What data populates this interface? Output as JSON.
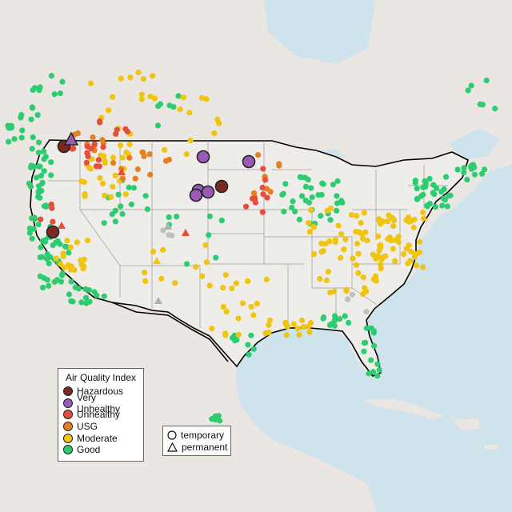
{
  "legend": {
    "title": "Air Quality Index",
    "categories": [
      {
        "key": "hazardous",
        "label": "Hazardous",
        "color": "#7b2a22"
      },
      {
        "key": "very_unhealthy",
        "label": "Very Unhealthy",
        "color": "#9b59b6"
      },
      {
        "key": "unhealthy",
        "label": "Unhealthy",
        "color": "#e74c3c"
      },
      {
        "key": "usg",
        "label": "USG",
        "color": "#e67e22"
      },
      {
        "key": "moderate",
        "label": "Moderate",
        "color": "#f1c40f"
      },
      {
        "key": "good",
        "label": "Good",
        "color": "#2ecc71"
      }
    ]
  },
  "shape_legend": {
    "temporary": "temporary",
    "permanent": "permanent"
  },
  "colors": {
    "ocean": "#cfe3ec",
    "land": "#eae6e1",
    "us_land": "#efede9",
    "border": "#000000",
    "state_line": "#9a9a9a",
    "no_data": "#c0c0c0"
  }
}
